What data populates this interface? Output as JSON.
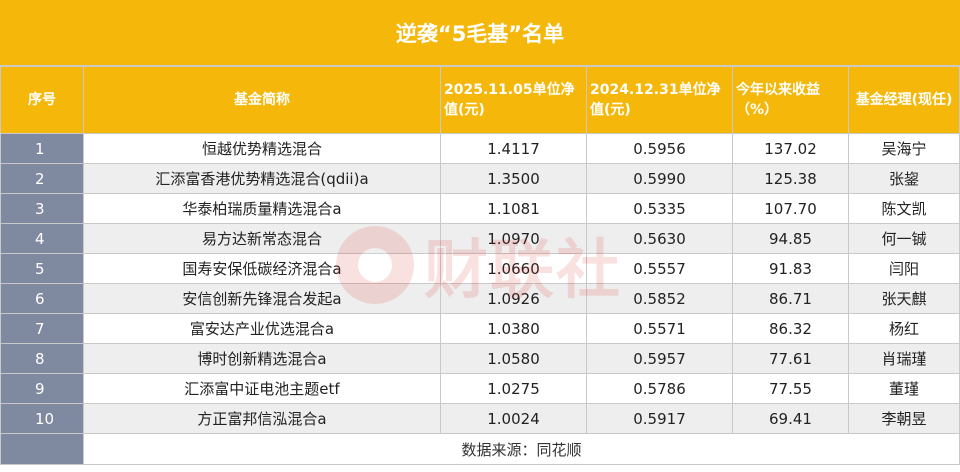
{
  "title": "逆袭“5毛基”名单",
  "columns": [
    "序号",
    "基金简称",
    "2025.11.05单位净值(元)",
    "2024.12.31单位净值(元)",
    "今年以来收益（%）",
    "基金经理(现任)"
  ],
  "rows": [
    {
      "no": "1",
      "name": "恒越优势精选混合",
      "nav_2025": "1.4117",
      "nav_2024": "0.5956",
      "ytd": "137.02",
      "manager": "吴海宁"
    },
    {
      "no": "2",
      "name": "汇添富香港优势精选混合(qdii)a",
      "nav_2025": "1.3500",
      "nav_2024": "0.5990",
      "ytd": "125.38",
      "manager": "张鋆"
    },
    {
      "no": "3",
      "name": "华泰柏瑞质量精选混合a",
      "nav_2025": "1.1081",
      "nav_2024": "0.5335",
      "ytd": "107.70",
      "manager": "陈文凯"
    },
    {
      "no": "4",
      "name": "易方达新常态混合",
      "nav_2025": "1.0970",
      "nav_2024": "0.5630",
      "ytd": "94.85",
      "manager": "何一铖"
    },
    {
      "no": "5",
      "name": "国寿安保低碳经济混合a",
      "nav_2025": "1.0660",
      "nav_2024": "0.5557",
      "ytd": "91.83",
      "manager": "闫阳"
    },
    {
      "no": "6",
      "name": "安信创新先锋混合发起a",
      "nav_2025": "1.0926",
      "nav_2024": "0.5852",
      "ytd": "86.71",
      "manager": "张天麒"
    },
    {
      "no": "7",
      "name": "富安达产业优选混合a",
      "nav_2025": "1.0380",
      "nav_2024": "0.5571",
      "ytd": "86.32",
      "manager": "杨红"
    },
    {
      "no": "8",
      "name": "博时创新精选混合a",
      "nav_2025": "1.0580",
      "nav_2024": "0.5957",
      "ytd": "77.61",
      "manager": "肖瑞瑾"
    },
    {
      "no": "9",
      "name": "汇添富中证电池主题etf",
      "nav_2025": "1.0275",
      "nav_2024": "0.5786",
      "ytd": "77.55",
      "manager": "董瑾"
    },
    {
      "no": "10",
      "name": "方正富邦信泓混合a",
      "nav_2025": "1.0024",
      "nav_2024": "0.5917",
      "ytd": "69.41",
      "manager": "李朝昱"
    }
  ],
  "source": "数据来源：同花顺",
  "watermark_text": "财联社",
  "colors": {
    "header": "#f5b80a",
    "index_col": "#7f8aa0",
    "stripe": "#eeeeee"
  }
}
